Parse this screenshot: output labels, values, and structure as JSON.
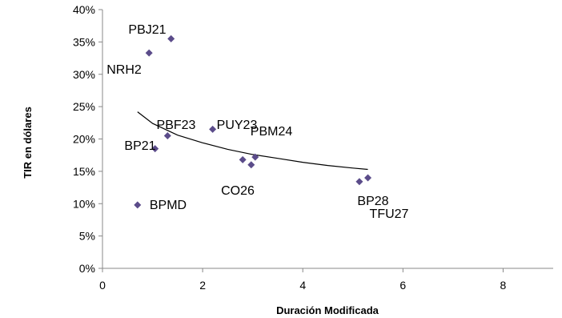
{
  "chart_data": {
    "type": "scatter",
    "title": "",
    "xlabel": "Duración Modificada",
    "ylabel": "TIR en dólares",
    "xlim": [
      0,
      9
    ],
    "ylim": [
      0,
      0.4
    ],
    "xticks": [
      0,
      2,
      4,
      6,
      8
    ],
    "yticks": [
      0,
      0.05,
      0.1,
      0.15,
      0.2,
      0.25,
      0.3,
      0.35,
      0.4
    ],
    "ytick_labels": [
      "0%",
      "5%",
      "10%",
      "15%",
      "20%",
      "25%",
      "30%",
      "35%",
      "40%"
    ],
    "grid": false,
    "marker": "diamond",
    "marker_color": "#5b4c8a",
    "points": [
      {
        "x": 1.37,
        "y": 0.355,
        "label": "PBJ21"
      },
      {
        "x": 0.93,
        "y": 0.333,
        "label": "NRH2"
      },
      {
        "x": 2.2,
        "y": 0.215,
        "label": "PUY23"
      },
      {
        "x": 1.3,
        "y": 0.205,
        "label": "PBF23"
      },
      {
        "x": 1.05,
        "y": 0.185,
        "label": "BP21"
      },
      {
        "x": 3.05,
        "y": 0.172,
        "label": "PBM24"
      },
      {
        "x": 2.8,
        "y": 0.168,
        "label": "CO26"
      },
      {
        "x": 2.97,
        "y": 0.16,
        "label": ""
      },
      {
        "x": 5.3,
        "y": 0.14,
        "label": "TFU27"
      },
      {
        "x": 5.13,
        "y": 0.134,
        "label": "BP28"
      },
      {
        "x": 0.7,
        "y": 0.098,
        "label": "BPMD"
      }
    ],
    "trendline": {
      "type": "log",
      "x_range": [
        0.7,
        5.3
      ],
      "points": [
        {
          "x": 0.7,
          "y": 0.242
        },
        {
          "x": 1.0,
          "y": 0.224
        },
        {
          "x": 1.5,
          "y": 0.206
        },
        {
          "x": 2.0,
          "y": 0.194
        },
        {
          "x": 2.5,
          "y": 0.184
        },
        {
          "x": 3.0,
          "y": 0.176
        },
        {
          "x": 3.5,
          "y": 0.17
        },
        {
          "x": 4.0,
          "y": 0.164
        },
        {
          "x": 4.5,
          "y": 0.159
        },
        {
          "x": 5.0,
          "y": 0.155
        },
        {
          "x": 5.3,
          "y": 0.153
        }
      ],
      "color": "#000000"
    }
  }
}
